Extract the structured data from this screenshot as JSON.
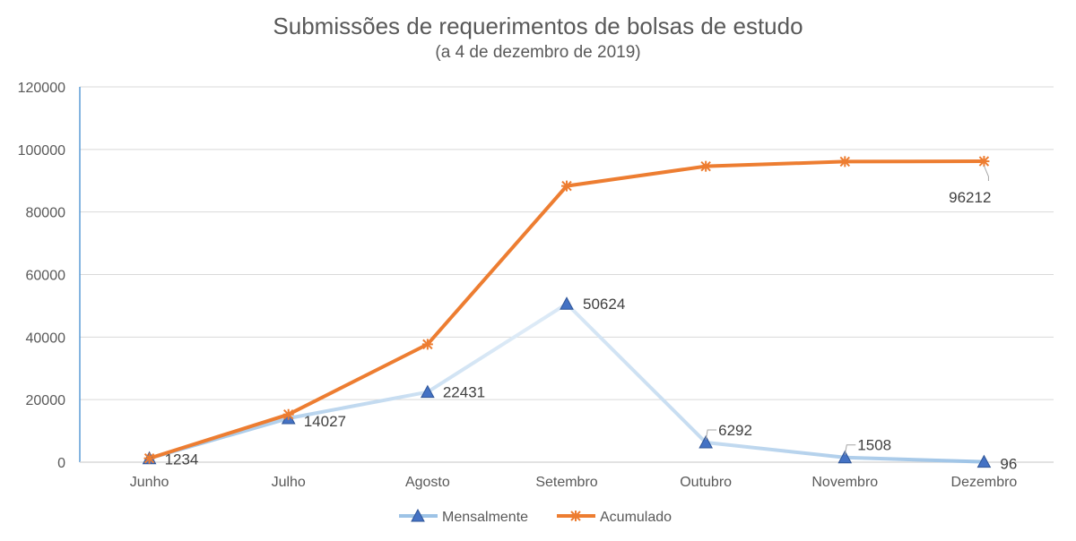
{
  "chart_data": {
    "type": "line",
    "title": "Submissões de requerimentos de bolsas de estudo",
    "subtitle": "(a 4 de dezembro de 2019)",
    "categories": [
      "Junho",
      "Julho",
      "Agosto",
      "Setembro",
      "Outubro",
      "Novembro",
      "Dezembro"
    ],
    "ylim": [
      0,
      120000
    ],
    "yticks": [
      "0",
      "20000",
      "40000",
      "60000",
      "80000",
      "100000",
      "120000"
    ],
    "grid": true,
    "legend_position": "bottom",
    "series": [
      {
        "name": "Mensalmente",
        "color": "#BDD7EE",
        "marker": "triangle",
        "values": [
          1234,
          14027,
          22431,
          50624,
          6292,
          1508,
          96
        ],
        "labels": [
          "1234",
          "14027",
          "22431",
          "50624",
          "6292",
          "1508",
          "96"
        ]
      },
      {
        "name": "Acumulado",
        "color": "#ED7D31",
        "marker": "star",
        "values": [
          1234,
          15261,
          37692,
          88316,
          94608,
          96116,
          96212
        ],
        "labels": [
          "",
          "",
          "",
          "",
          "",
          "",
          "96212"
        ]
      }
    ]
  }
}
